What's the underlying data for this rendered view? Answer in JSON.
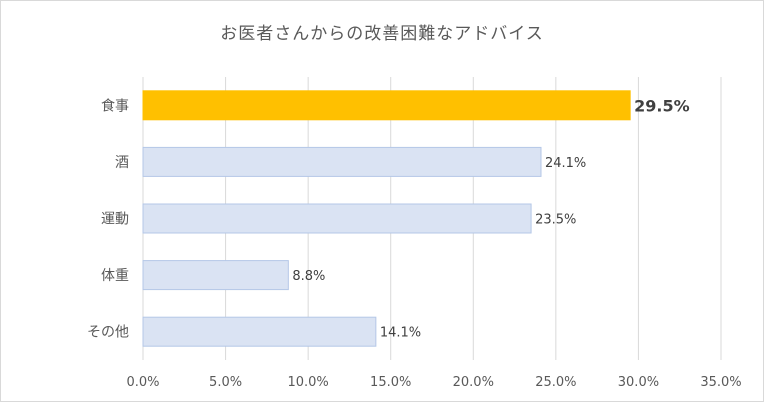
{
  "chart_data": {
    "type": "bar",
    "orientation": "horizontal",
    "title": "お医者さんからの改善困難なアドバイス",
    "categories": [
      "食事",
      "酒",
      "運動",
      "体重",
      "その他"
    ],
    "values": [
      29.5,
      24.1,
      23.5,
      8.8,
      14.1
    ],
    "data_labels": [
      "29.5%",
      "24.1%",
      "23.5%",
      "8.8%",
      "14.1%"
    ],
    "xlim": [
      0,
      35
    ],
    "xticks": [
      0,
      5,
      10,
      15,
      20,
      25,
      30,
      35
    ],
    "xtick_labels": [
      "0.0%",
      "5.0%",
      "10.0%",
      "15.0%",
      "20.0%",
      "25.0%",
      "30.0%",
      "35.0%"
    ],
    "grid": "vertical",
    "highlight_index": 0,
    "colors": {
      "highlight": "#ffc000",
      "bar_fill": "#dae3f3",
      "bar_stroke": "#b4c7e7",
      "grid": "#d9d9d9"
    }
  }
}
